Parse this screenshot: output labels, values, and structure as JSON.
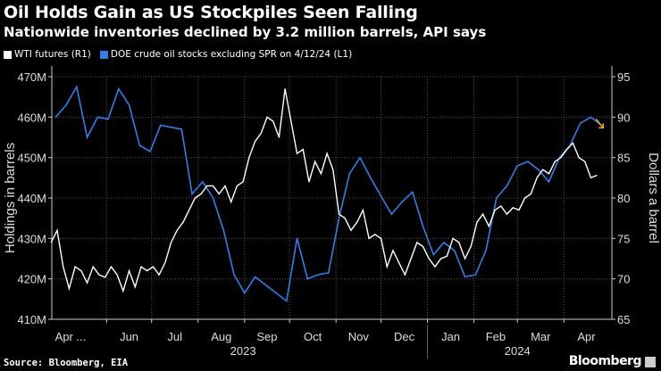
{
  "header": {
    "title": "Oil Holds Gain as US Stockpiles Seen Falling",
    "subtitle": "Nationwide inventories declined by 3.2 million barrels, API says"
  },
  "footer": {
    "source": "Source: Bloomberg, EIA",
    "brand": "Bloomberg"
  },
  "chart_data": {
    "type": "line",
    "colors": {
      "wti": "#ffffff",
      "doe": "#2f80e8",
      "arrow": "#f5a623",
      "background": "#000000"
    },
    "legend_placement": "top-left",
    "grid": true,
    "xlim": [
      "2023-04-01",
      "2024-05-03"
    ],
    "x_ticks": [
      {
        "label": "Apr ...",
        "month": "2023-04"
      },
      {
        "label": "Jun",
        "month": "2023-06"
      },
      {
        "label": "Jul",
        "month": "2023-07"
      },
      {
        "label": "Aug",
        "month": "2023-08"
      },
      {
        "label": "Sep",
        "month": "2023-09"
      },
      {
        "label": "Oct",
        "month": "2023-10"
      },
      {
        "label": "Nov",
        "month": "2023-11"
      },
      {
        "label": "Dec",
        "month": "2023-12"
      },
      {
        "label": "Jan",
        "month": "2024-01"
      },
      {
        "label": "Feb",
        "month": "2024-02"
      },
      {
        "label": "Mar",
        "month": "2024-03"
      },
      {
        "label": "Apr",
        "month": "2024-04"
      }
    ],
    "years": [
      {
        "label": "2023",
        "center": "2023-08-31"
      },
      {
        "label": "2024",
        "center": "2024-03-01"
      }
    ],
    "left_axis": {
      "label": "Holdings in barrels",
      "ylim": [
        410,
        470
      ],
      "ticks": [
        "410M",
        "420M",
        "430M",
        "440M",
        "450M",
        "460M",
        "470M"
      ]
    },
    "right_axis": {
      "label": "Dollars a barrel",
      "ylim": [
        65,
        95
      ],
      "ticks": [
        "65",
        "70",
        "75",
        "80",
        "85",
        "90",
        "95"
      ]
    },
    "series": [
      {
        "name": "WTI futures (R1)",
        "axis": "right",
        "points": [
          [
            "2023-04-25",
            74.5
          ],
          [
            "2023-04-29",
            76
          ],
          [
            "2023-05-03",
            71.5
          ],
          [
            "2023-05-07",
            68.8
          ],
          [
            "2023-05-11",
            71.5
          ],
          [
            "2023-05-15",
            71
          ],
          [
            "2023-05-19",
            69.5
          ],
          [
            "2023-05-23",
            71.5
          ],
          [
            "2023-05-27",
            70.5
          ],
          [
            "2023-05-31",
            70.2
          ],
          [
            "2023-06-04",
            71.5
          ],
          [
            "2023-06-08",
            70.5
          ],
          [
            "2023-06-12",
            68.5
          ],
          [
            "2023-06-16",
            71
          ],
          [
            "2023-06-20",
            69
          ],
          [
            "2023-06-24",
            71.5
          ],
          [
            "2023-06-28",
            71
          ],
          [
            "2023-07-02",
            71.5
          ],
          [
            "2023-07-06",
            70.5
          ],
          [
            "2023-07-10",
            72
          ],
          [
            "2023-07-14",
            74.5
          ],
          [
            "2023-07-18",
            76
          ],
          [
            "2023-07-22",
            77
          ],
          [
            "2023-07-26",
            78.5
          ],
          [
            "2023-07-30",
            80
          ],
          [
            "2023-08-03",
            80.5
          ],
          [
            "2023-08-07",
            81.5
          ],
          [
            "2023-08-11",
            81.5
          ],
          [
            "2023-08-15",
            80.5
          ],
          [
            "2023-08-19",
            81.5
          ],
          [
            "2023-08-23",
            79.5
          ],
          [
            "2023-08-27",
            81.5
          ],
          [
            "2023-08-31",
            82
          ],
          [
            "2023-09-04",
            85
          ],
          [
            "2023-09-08",
            87
          ],
          [
            "2023-09-12",
            88
          ],
          [
            "2023-09-16",
            90
          ],
          [
            "2023-09-20",
            89.5
          ],
          [
            "2023-09-24",
            87.5
          ],
          [
            "2023-09-28",
            93.5
          ],
          [
            "2023-10-02",
            89.5
          ],
          [
            "2023-10-06",
            85.5
          ],
          [
            "2023-10-10",
            86
          ],
          [
            "2023-10-14",
            82
          ],
          [
            "2023-10-18",
            84.5
          ],
          [
            "2023-10-22",
            83
          ],
          [
            "2023-10-26",
            85.5
          ],
          [
            "2023-10-30",
            83.5
          ],
          [
            "2023-11-03",
            78
          ],
          [
            "2023-11-07",
            77.5
          ],
          [
            "2023-11-11",
            76
          ],
          [
            "2023-11-15",
            77
          ],
          [
            "2023-11-19",
            78.5
          ],
          [
            "2023-11-23",
            75
          ],
          [
            "2023-11-27",
            75.5
          ],
          [
            "2023-12-01",
            75
          ],
          [
            "2023-12-05",
            71.5
          ],
          [
            "2023-12-09",
            73.5
          ],
          [
            "2023-12-13",
            72
          ],
          [
            "2023-12-17",
            70.5
          ],
          [
            "2023-12-21",
            72.5
          ],
          [
            "2023-12-25",
            74.5
          ],
          [
            "2023-12-29",
            74
          ],
          [
            "2024-01-02",
            72.5
          ],
          [
            "2024-01-06",
            71.5
          ],
          [
            "2024-01-10",
            72.5
          ],
          [
            "2024-01-14",
            72.8
          ],
          [
            "2024-01-18",
            75
          ],
          [
            "2024-01-22",
            74.5
          ],
          [
            "2024-01-26",
            72.5
          ],
          [
            "2024-01-30",
            74
          ],
          [
            "2024-02-03",
            77
          ],
          [
            "2024-02-07",
            78
          ],
          [
            "2024-02-11",
            76.5
          ],
          [
            "2024-02-15",
            78.5
          ],
          [
            "2024-02-19",
            79
          ],
          [
            "2024-02-23",
            78
          ],
          [
            "2024-02-27",
            78.8
          ],
          [
            "2024-03-02",
            78.5
          ],
          [
            "2024-03-06",
            80
          ],
          [
            "2024-03-10",
            80.5
          ],
          [
            "2024-03-14",
            82.5
          ],
          [
            "2024-03-18",
            83.5
          ],
          [
            "2024-03-22",
            83
          ],
          [
            "2024-03-26",
            84.5
          ],
          [
            "2024-03-30",
            85
          ],
          [
            "2024-04-03",
            86
          ],
          [
            "2024-04-07",
            86.8
          ],
          [
            "2024-04-11",
            85
          ],
          [
            "2024-04-15",
            84.5
          ],
          [
            "2024-04-19",
            82.5
          ],
          [
            "2024-04-23",
            82.8
          ]
        ]
      },
      {
        "name": "DOE crude oil stocks excluding SPR on 4/12/24 (L1)",
        "axis": "left",
        "points": [
          [
            "2023-04-28",
            460
          ],
          [
            "2023-05-05",
            463
          ],
          [
            "2023-05-12",
            467.5
          ],
          [
            "2023-05-19",
            455
          ],
          [
            "2023-05-26",
            460
          ],
          [
            "2023-06-02",
            459.5
          ],
          [
            "2023-06-09",
            467
          ],
          [
            "2023-06-16",
            463
          ],
          [
            "2023-06-23",
            453
          ],
          [
            "2023-06-30",
            451.5
          ],
          [
            "2023-07-07",
            458
          ],
          [
            "2023-07-14",
            457.5
          ],
          [
            "2023-07-21",
            457
          ],
          [
            "2023-07-28",
            441
          ],
          [
            "2023-08-04",
            444
          ],
          [
            "2023-08-11",
            440
          ],
          [
            "2023-08-18",
            432
          ],
          [
            "2023-08-25",
            421
          ],
          [
            "2023-09-01",
            416.5
          ],
          [
            "2023-09-08",
            420.5
          ],
          [
            "2023-09-15",
            418.5
          ],
          [
            "2023-09-22",
            416.5
          ],
          [
            "2023-09-29",
            414.5
          ],
          [
            "2023-10-06",
            430
          ],
          [
            "2023-10-13",
            420
          ],
          [
            "2023-10-20",
            421
          ],
          [
            "2023-10-27",
            421.5
          ],
          [
            "2023-11-03",
            435
          ],
          [
            "2023-11-10",
            446
          ],
          [
            "2023-11-17",
            450
          ],
          [
            "2023-11-24",
            445
          ],
          [
            "2023-12-01",
            440.5
          ],
          [
            "2023-12-08",
            436
          ],
          [
            "2023-12-15",
            439
          ],
          [
            "2023-12-22",
            441.5
          ],
          [
            "2023-12-29",
            433
          ],
          [
            "2024-01-05",
            426
          ],
          [
            "2024-01-12",
            429
          ],
          [
            "2024-01-19",
            427
          ],
          [
            "2024-01-26",
            420.5
          ],
          [
            "2024-02-02",
            421
          ],
          [
            "2024-02-09",
            427
          ],
          [
            "2024-02-16",
            440
          ],
          [
            "2024-02-23",
            443
          ],
          [
            "2024-03-01",
            448
          ],
          [
            "2024-03-08",
            449
          ],
          [
            "2024-03-15",
            447
          ],
          [
            "2024-03-22",
            444
          ],
          [
            "2024-03-29",
            450
          ],
          [
            "2024-04-05",
            453
          ],
          [
            "2024-04-12",
            458.5
          ],
          [
            "2024-04-19",
            460
          ],
          [
            "2024-04-26",
            458
          ]
        ]
      }
    ]
  }
}
